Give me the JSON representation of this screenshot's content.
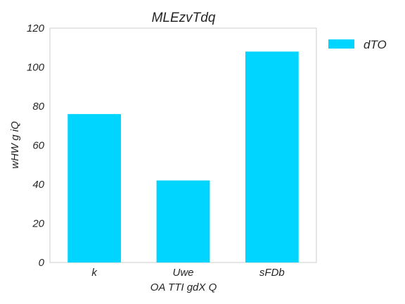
{
  "chart_data": {
    "type": "bar",
    "title": "MLEzvTdq",
    "xlabel": "OA TTI gdX Q",
    "ylabel": "wHW g iQ",
    "categories": [
      "k",
      "Uwe",
      "sFDb"
    ],
    "series": [
      {
        "name": "dTO",
        "values": [
          76,
          42,
          108
        ],
        "color": "#00d5ff"
      }
    ],
    "ylim": [
      0,
      120
    ],
    "yticks": [
      0,
      20,
      40,
      60,
      80,
      100,
      120
    ],
    "grid": false,
    "legend": "outside-top-right"
  }
}
